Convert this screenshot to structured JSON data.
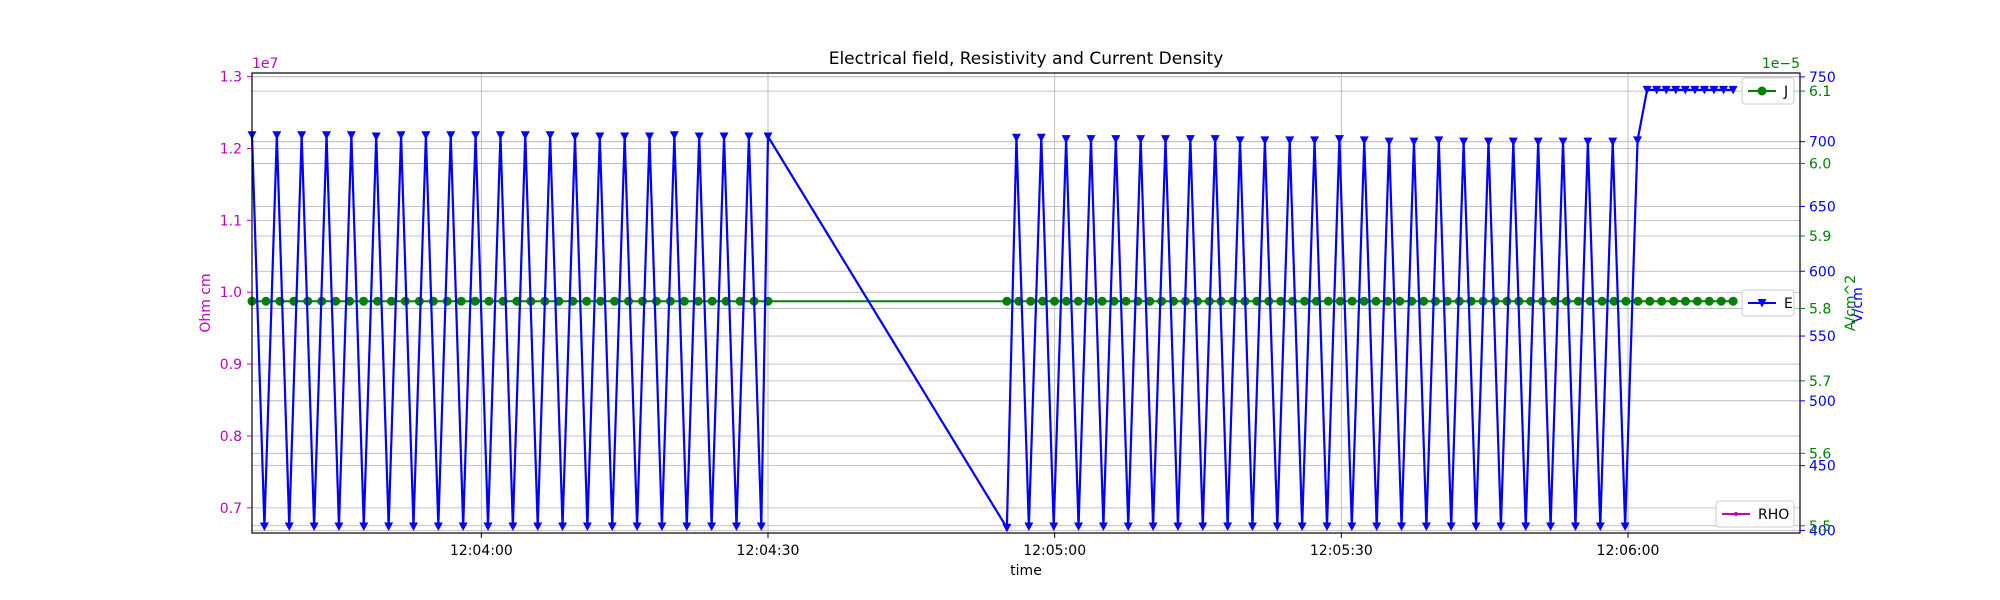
{
  "chart_data": {
    "type": "line",
    "title": "Electrical field, Resistivity and Current Density",
    "xlabel": "time",
    "x_range": [
      "12:03:36",
      "12:06:18"
    ],
    "x_ticks": [
      "12:04:00",
      "12:04:30",
      "12:05:00",
      "12:05:30",
      "12:06:00"
    ],
    "grid": true,
    "axes": {
      "left": {
        "label": "Ohm cm",
        "color": "#bf00bf",
        "offset_text": "1e7",
        "range": [
          0.665,
          1.305
        ],
        "ticks": [
          "0.7",
          "0.8",
          "0.9",
          "1.0",
          "1.1",
          "1.2",
          "1.3"
        ]
      },
      "right_E": {
        "label": "V/cm",
        "color": "#0000ff",
        "range": [
          398,
          753
        ],
        "ticks": [
          "400",
          "450",
          "500",
          "550",
          "600",
          "650",
          "700",
          "750"
        ]
      },
      "right_J": {
        "label": "A/cm^2",
        "color": "#008000",
        "offset_text": "1e−5",
        "range": [
          5.49,
          6.125
        ],
        "ticks": [
          "5.5",
          "5.6",
          "5.7",
          "5.8",
          "5.9",
          "6.0",
          "6.1"
        ]
      }
    },
    "series": [
      {
        "name": "E",
        "axis": "right_E",
        "color": "#0000ff",
        "marker": "triangle-down",
        "points": [
          [
            "12:03:36",
            705
          ],
          [
            "12:03:37.3",
            403
          ],
          [
            "12:03:38.6",
            705
          ],
          [
            "12:03:39.9",
            403
          ],
          [
            "12:03:41.2",
            705
          ],
          [
            "12:03:42.5",
            403
          ],
          [
            "12:03:43.8",
            705
          ],
          [
            "12:03:45.1",
            403
          ],
          [
            "12:03:46.4",
            705
          ],
          [
            "12:03:47.7",
            403
          ],
          [
            "12:03:49",
            704
          ],
          [
            "12:03:50.3",
            403
          ],
          [
            "12:03:51.6",
            705
          ],
          [
            "12:03:52.9",
            403
          ],
          [
            "12:03:54.2",
            705
          ],
          [
            "12:03:55.5",
            403
          ],
          [
            "12:03:56.8",
            705
          ],
          [
            "12:03:58.1",
            403
          ],
          [
            "12:03:59.4",
            705
          ],
          [
            "12:04:00.7",
            403
          ],
          [
            "12:04:02",
            705
          ],
          [
            "12:04:03.3",
            403
          ],
          [
            "12:04:04.6",
            705
          ],
          [
            "12:04:05.9",
            403
          ],
          [
            "12:04:07.2",
            705
          ],
          [
            "12:04:08.5",
            403
          ],
          [
            "12:04:09.8",
            704
          ],
          [
            "12:04:11.1",
            403
          ],
          [
            "12:04:12.4",
            704
          ],
          [
            "12:04:13.7",
            403
          ],
          [
            "12:04:15",
            704
          ],
          [
            "12:04:16.3",
            403
          ],
          [
            "12:04:17.6",
            704
          ],
          [
            "12:04:18.9",
            403
          ],
          [
            "12:04:20.2",
            705
          ],
          [
            "12:04:21.5",
            403
          ],
          [
            "12:04:22.8",
            704
          ],
          [
            "12:04:24.1",
            403
          ],
          [
            "12:04:25.4",
            704
          ],
          [
            "12:04:26.7",
            403
          ],
          [
            "12:04:28",
            704
          ],
          [
            "12:04:29.3",
            403
          ],
          [
            "12:04:30",
            704
          ],
          [
            "12:04:55",
            402
          ],
          [
            "12:04:56",
            703
          ],
          [
            "12:04:57.3",
            403
          ],
          [
            "12:04:58.6",
            703
          ],
          [
            "12:04:59.9",
            403
          ],
          [
            "12:05:01.2",
            702
          ],
          [
            "12:05:02.5",
            403
          ],
          [
            "12:05:03.8",
            702
          ],
          [
            "12:05:05.1",
            403
          ],
          [
            "12:05:06.4",
            702
          ],
          [
            "12:05:07.7",
            403
          ],
          [
            "12:05:09",
            702
          ],
          [
            "12:05:10.3",
            403
          ],
          [
            "12:05:11.6",
            702
          ],
          [
            "12:05:12.9",
            403
          ],
          [
            "12:05:14.2",
            702
          ],
          [
            "12:05:15.5",
            403
          ],
          [
            "12:05:16.8",
            702
          ],
          [
            "12:05:18.1",
            403
          ],
          [
            "12:05:19.4",
            701
          ],
          [
            "12:05:20.7",
            403
          ],
          [
            "12:05:22",
            701
          ],
          [
            "12:05:23.3",
            403
          ],
          [
            "12:05:24.6",
            701
          ],
          [
            "12:05:25.9",
            403
          ],
          [
            "12:05:27.2",
            701
          ],
          [
            "12:05:28.5",
            403
          ],
          [
            "12:05:29.8",
            702
          ],
          [
            "12:05:31.1",
            403
          ],
          [
            "12:05:32.4",
            701
          ],
          [
            "12:05:33.7",
            403
          ],
          [
            "12:05:35",
            700
          ],
          [
            "12:05:36.3",
            403
          ],
          [
            "12:05:37.6",
            700
          ],
          [
            "12:05:38.9",
            403
          ],
          [
            "12:05:40.2",
            701
          ],
          [
            "12:05:41.5",
            403
          ],
          [
            "12:05:42.8",
            700
          ],
          [
            "12:05:44.1",
            403
          ],
          [
            "12:05:45.4",
            700
          ],
          [
            "12:05:46.7",
            403
          ],
          [
            "12:05:48",
            700
          ],
          [
            "12:05:49.3",
            403
          ],
          [
            "12:05:50.6",
            700
          ],
          [
            "12:05:51.9",
            403
          ],
          [
            "12:05:53.2",
            700
          ],
          [
            "12:05:54.5",
            403
          ],
          [
            "12:05:55.8",
            700
          ],
          [
            "12:05:57.1",
            403
          ],
          [
            "12:05:58.4",
            700
          ],
          [
            "12:05:59.7",
            403
          ],
          [
            "12:06:01",
            701
          ],
          [
            "12:06:02",
            740
          ],
          [
            "12:06:03",
            740
          ],
          [
            "12:06:04",
            740
          ],
          [
            "12:06:05",
            740
          ],
          [
            "12:06:06",
            740
          ],
          [
            "12:06:07",
            740
          ],
          [
            "12:06:08",
            740
          ],
          [
            "12:06:09",
            740
          ],
          [
            "12:06:10",
            740
          ],
          [
            "12:06:11",
            740
          ]
        ]
      },
      {
        "name": "J",
        "axis": "right_J",
        "color": "#008000",
        "marker": "circle",
        "segments": [
          {
            "from": "12:03:36",
            "to": "12:04:30",
            "value": 5.81,
            "count": 38
          },
          {
            "from": "12:04:55",
            "to": "12:06:11",
            "value": 5.81,
            "count": 62
          }
        ]
      },
      {
        "name": "RHO",
        "axis": "left",
        "color": "#bf00bf",
        "marker": "point",
        "points": []
      }
    ],
    "legends": [
      {
        "label": "J",
        "placement": "upper right"
      },
      {
        "label": "E",
        "placement": "center right"
      },
      {
        "label": "RHO",
        "placement": "lower right"
      }
    ]
  }
}
